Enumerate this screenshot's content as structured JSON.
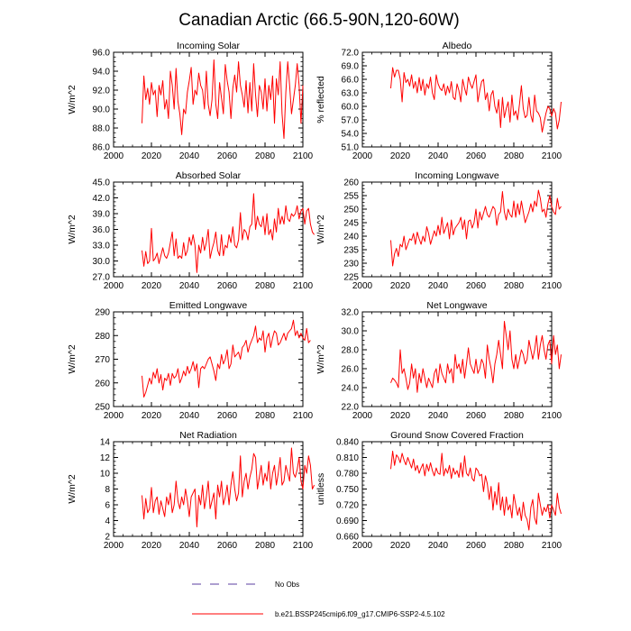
{
  "title": "Canadian Arctic (66.5-90N,120-60W)",
  "colors": {
    "model": "#ff0000",
    "obs": "#5b3fa0",
    "axis": "#000000"
  },
  "legend": {
    "obs_label": "No Obs",
    "model_label": "b.e21.BSSP245cmip6.f09_g17.CMIP6-SSP2-4.5.102"
  },
  "chart_data": [
    {
      "type": "line",
      "title": "Incoming Solar",
      "ylabel": "W/m^2",
      "xlim": [
        2000,
        2100
      ],
      "ylim": [
        86,
        96
      ],
      "xticks": [
        2000,
        2020,
        2040,
        2060,
        2080,
        2100
      ],
      "yticks": [
        86,
        88,
        90,
        92,
        94,
        96
      ],
      "ytick_labels": [
        "86.0",
        "88.0",
        "90.0",
        "92.0",
        "94.0",
        "96.0"
      ],
      "x_start": 2015,
      "series": [
        {
          "name": "model",
          "values": [
            88.5,
            93.5,
            91,
            92.2,
            90.5,
            92.8,
            91.5,
            92,
            89.2,
            92.5,
            91.5,
            93,
            90,
            91,
            89,
            94,
            92.5,
            90,
            94.3,
            90.8,
            89.5,
            87.3,
            90,
            89.5,
            91.8,
            93,
            94.4,
            90.5,
            92,
            91.5,
            93.8,
            92.5,
            92,
            90,
            94,
            90.5,
            89.3,
            91,
            95.2,
            90.5,
            89,
            92.8,
            91.2,
            89.5,
            94.7,
            93,
            91.8,
            89,
            92.2,
            93.6,
            91.8,
            95,
            92.5,
            91.5,
            90.2,
            93,
            89.6,
            92.8,
            89.8,
            94.8,
            91.5,
            89.2,
            92.5,
            91.8,
            90,
            93.2,
            89.8,
            92.5,
            91,
            93.5,
            88.5,
            93.2,
            91.5,
            95,
            89.5,
            86.9,
            91.8,
            95,
            92.5,
            89.5,
            91,
            92.5,
            94.8,
            92.5,
            88.5,
            92.5
          ]
        }
      ]
    },
    {
      "type": "line",
      "title": "Albedo",
      "ylabel": "% reflected",
      "xlim": [
        2000,
        2100
      ],
      "ylim": [
        51,
        72
      ],
      "xticks": [
        2000,
        2020,
        2040,
        2060,
        2080,
        2100
      ],
      "yticks": [
        51,
        54,
        57,
        60,
        63,
        66,
        69,
        72
      ],
      "ytick_labels": [
        "51.0",
        "54.0",
        "57.0",
        "60.0",
        "63.0",
        "66.0",
        "69.0",
        "72.0"
      ],
      "x_start": 2015,
      "series": [
        {
          "name": "model",
          "values": [
            64,
            68.6,
            66.5,
            68,
            68,
            66,
            61,
            67.5,
            65.3,
            66,
            64.5,
            67,
            64,
            65.5,
            63,
            66.4,
            63.5,
            66,
            62.5,
            65,
            64,
            66.5,
            63,
            61.5,
            67,
            65,
            64,
            63.5,
            65,
            62.5,
            64.5,
            63,
            65.5,
            62,
            61.5,
            65,
            63.5,
            61,
            66,
            64,
            62.5,
            66.5,
            65,
            64,
            65.5,
            67,
            61,
            63.5,
            65.5,
            66,
            61.5,
            63,
            59,
            62.5,
            63.5,
            60,
            58.5,
            61.5,
            55.3,
            62,
            57.5,
            59.5,
            61,
            56.5,
            62.5,
            58,
            59,
            57,
            60.5,
            64.6,
            59.5,
            57.5,
            58,
            62,
            58,
            56.5,
            62.5,
            59,
            58.5,
            57.5,
            54.3,
            56.5,
            58.5,
            60,
            59.5,
            57.8,
            59.5,
            58.5,
            55,
            57,
            61
          ]
        }
      ]
    },
    {
      "type": "line",
      "title": "Absorbed Solar",
      "ylabel": "W/m^2",
      "xlim": [
        2000,
        2100
      ],
      "ylim": [
        27,
        45
      ],
      "xticks": [
        2000,
        2020,
        2040,
        2060,
        2080,
        2100
      ],
      "yticks": [
        27,
        30,
        33,
        36,
        39,
        42,
        45
      ],
      "ytick_labels": [
        "27.0",
        "30.0",
        "33.0",
        "36.0",
        "39.0",
        "42.0",
        "45.0"
      ],
      "x_start": 2015,
      "series": [
        {
          "name": "model",
          "values": [
            32,
            29,
            31.8,
            29.5,
            30,
            36.2,
            30,
            30.5,
            31.5,
            29.5,
            31,
            32.5,
            31,
            30.5,
            31.5,
            33.5,
            35.5,
            31,
            34.2,
            30.5,
            31,
            30.5,
            33.5,
            31,
            32,
            34.5,
            33,
            35,
            33,
            27.8,
            33,
            31.5,
            34.5,
            32,
            33.5,
            36,
            30.5,
            32.2,
            33.5,
            35.5,
            32,
            31,
            35,
            31,
            33,
            32.5,
            35,
            33.5,
            36.5,
            33,
            32.5,
            34,
            39.2,
            34,
            36,
            35.5,
            34,
            36.5,
            37,
            42.8,
            36,
            38.5,
            37,
            36.5,
            38.5,
            35,
            39,
            35,
            36,
            34,
            38,
            35.5,
            40,
            37,
            38.5,
            37,
            40.5,
            38,
            37.5,
            39,
            38.5,
            39,
            40.5,
            38,
            39.5,
            40,
            37,
            39.5,
            40,
            37,
            35.5,
            35
          ]
        }
      ]
    },
    {
      "type": "line",
      "title": "Incoming Longwave",
      "ylabel": "W/m^2",
      "xlim": [
        2000,
        2100
      ],
      "ylim": [
        225,
        260
      ],
      "xticks": [
        2000,
        2020,
        2040,
        2060,
        2080,
        2100
      ],
      "yticks": [
        225,
        230,
        235,
        240,
        245,
        250,
        255,
        260
      ],
      "ytick_labels": [
        "225",
        "230",
        "235",
        "240",
        "245",
        "250",
        "255",
        "260"
      ],
      "x_start": 2015,
      "series": [
        {
          "name": "model",
          "values": [
            238.5,
            229,
            233.5,
            235.5,
            232.5,
            237,
            236,
            240,
            235,
            237,
            239,
            238.5,
            241,
            237,
            241.5,
            239,
            237,
            240,
            238,
            243.5,
            241,
            237,
            239.5,
            242,
            240,
            244,
            240.5,
            247,
            241,
            243,
            245,
            239,
            246,
            240.5,
            243,
            244,
            245,
            247,
            242.5,
            246,
            239,
            245.5,
            246,
            243,
            245,
            250,
            243,
            249,
            246,
            248.5,
            251,
            248,
            247,
            249,
            251,
            250,
            244,
            248,
            249,
            256.5,
            249,
            246,
            250,
            248,
            247,
            253,
            247,
            252,
            248,
            253,
            249,
            245,
            247,
            249,
            252,
            249,
            253,
            251,
            257,
            254,
            249,
            250,
            247,
            252,
            255,
            251,
            249,
            248,
            254,
            250,
            251
          ]
        }
      ]
    },
    {
      "type": "line",
      "title": "Emitted Longwave",
      "ylabel": "W/m^2",
      "xlim": [
        2000,
        2100
      ],
      "ylim": [
        250,
        290
      ],
      "xticks": [
        2000,
        2020,
        2040,
        2060,
        2080,
        2100
      ],
      "yticks": [
        250,
        260,
        270,
        280,
        290
      ],
      "ytick_labels": [
        "250",
        "260",
        "270",
        "280",
        "290"
      ],
      "x_start": 2015,
      "series": [
        {
          "name": "model",
          "values": [
            263,
            254,
            256,
            259,
            262,
            259.5,
            264.5,
            262,
            266,
            260,
            263.5,
            257,
            262,
            261,
            264,
            259,
            264,
            262,
            263,
            266,
            260,
            262,
            265,
            263,
            267,
            264,
            266,
            269,
            265,
            268,
            258,
            266,
            267,
            266,
            268,
            270,
            271,
            268,
            265,
            261,
            268,
            266,
            272,
            268,
            270,
            274,
            266,
            268,
            276,
            271,
            272,
            273,
            270,
            275,
            276,
            278,
            273,
            276,
            278,
            280,
            284,
            277,
            279,
            278,
            282,
            273,
            279,
            281,
            275,
            279,
            282,
            281,
            276,
            277,
            279,
            281,
            278,
            281,
            282,
            283,
            286.5,
            280,
            282,
            279,
            281,
            279,
            278,
            283,
            277,
            278
          ]
        }
      ]
    },
    {
      "type": "line",
      "title": "Net Longwave",
      "ylabel": "W/m^2",
      "xlim": [
        2000,
        2100
      ],
      "ylim": [
        22,
        32
      ],
      "xticks": [
        2000,
        2020,
        2040,
        2060,
        2080,
        2100
      ],
      "yticks": [
        22,
        24,
        26,
        28,
        30,
        32
      ],
      "ytick_labels": [
        "22.0",
        "24.0",
        "26.0",
        "28.0",
        "30.0",
        "32.0"
      ],
      "x_start": 2015,
      "series": [
        {
          "name": "model",
          "values": [
            24.5,
            25,
            24.8,
            24.5,
            24,
            28,
            25.5,
            26,
            25,
            23.8,
            24.5,
            26.5,
            25,
            26,
            23.5,
            25.5,
            24.5,
            26,
            25,
            24,
            25,
            24.5,
            24,
            25.5,
            26,
            24.5,
            26.5,
            25.5,
            25,
            24.5,
            26.5,
            25.5,
            26,
            24.5,
            27.5,
            26,
            26.5,
            25.5,
            27,
            25,
            26.5,
            28.2,
            26.5,
            26,
            25.5,
            27,
            25.5,
            26,
            27,
            26.5,
            25,
            28.5,
            27,
            26,
            24.5,
            26.5,
            27.5,
            29,
            27.5,
            26,
            31,
            29.5,
            28,
            30,
            27,
            26,
            27.5,
            26,
            27,
            28,
            27.5,
            26.5,
            27,
            29,
            28,
            27,
            28,
            29.5,
            27,
            28.5,
            29.5,
            28,
            27,
            28.5,
            29,
            26.5,
            29.5,
            27.5,
            28.5,
            26,
            27.5
          ]
        }
      ]
    },
    {
      "type": "line",
      "title": "Net Radiation",
      "ylabel": "W/m^2",
      "xlim": [
        2000,
        2100
      ],
      "ylim": [
        2,
        14
      ],
      "xticks": [
        2000,
        2020,
        2040,
        2060,
        2080,
        2100
      ],
      "yticks": [
        2,
        4,
        6,
        8,
        10,
        12,
        14
      ],
      "ytick_labels": [
        "2",
        "4",
        "6",
        "8",
        "10",
        "12",
        "14"
      ],
      "x_start": 2015,
      "series": [
        {
          "name": "model",
          "values": [
            7.2,
            4.2,
            6.8,
            5,
            5.5,
            8.2,
            5,
            6.5,
            7,
            4.8,
            6.5,
            5.5,
            4.5,
            7,
            6,
            7.5,
            5,
            6,
            9,
            6.5,
            5.5,
            7,
            6,
            8,
            6.5,
            4.5,
            7,
            7.5,
            8,
            3.2,
            7.2,
            6,
            8.5,
            5.5,
            7,
            9,
            5.5,
            6.5,
            7.5,
            4.2,
            8.5,
            7,
            9,
            6,
            7,
            8.5,
            6,
            8.5,
            10.2,
            8,
            6.5,
            7.5,
            12.2,
            7,
            9,
            10,
            8,
            9.5,
            10.5,
            12.5,
            12,
            8,
            9.5,
            11,
            8.5,
            10,
            9,
            11.5,
            8,
            10,
            11,
            8.5,
            10,
            12,
            8.5,
            9,
            11,
            10,
            9,
            13.2,
            10,
            9.5,
            10.5,
            12,
            9,
            8,
            11,
            10,
            12.2,
            11,
            8,
            8.5
          ]
        }
      ]
    },
    {
      "type": "line",
      "title": "Ground Snow Covered Fraction",
      "ylabel": "unitless",
      "xlim": [
        2000,
        2100
      ],
      "ylim": [
        0.66,
        0.84
      ],
      "xticks": [
        2000,
        2020,
        2040,
        2060,
        2080,
        2100
      ],
      "yticks": [
        0.66,
        0.69,
        0.72,
        0.75,
        0.78,
        0.81,
        0.84
      ],
      "ytick_labels": [
        "0.660",
        "0.690",
        "0.720",
        "0.750",
        "0.780",
        "0.810",
        "0.840"
      ],
      "x_start": 2015,
      "series": [
        {
          "name": "model",
          "values": [
            0.788,
            0.822,
            0.795,
            0.815,
            0.81,
            0.8,
            0.818,
            0.805,
            0.796,
            0.81,
            0.8,
            0.79,
            0.807,
            0.785,
            0.795,
            0.78,
            0.79,
            0.798,
            0.775,
            0.797,
            0.784,
            0.8,
            0.785,
            0.775,
            0.79,
            0.78,
            0.778,
            0.818,
            0.775,
            0.789,
            0.78,
            0.795,
            0.77,
            0.79,
            0.778,
            0.785,
            0.772,
            0.8,
            0.773,
            0.813,
            0.78,
            0.775,
            0.79,
            0.77,
            0.765,
            0.79,
            0.785,
            0.775,
            0.778,
            0.745,
            0.775,
            0.76,
            0.73,
            0.755,
            0.71,
            0.745,
            0.72,
            0.762,
            0.71,
            0.735,
            0.7,
            0.735,
            0.71,
            0.72,
            0.695,
            0.74,
            0.72,
            0.7,
            0.715,
            0.69,
            0.725,
            0.7,
            0.692,
            0.672,
            0.715,
            0.73,
            0.695,
            0.683,
            0.742,
            0.72,
            0.7,
            0.715,
            0.707,
            0.72,
            0.695,
            0.72,
            0.71,
            0.7,
            0.742,
            0.715,
            0.703
          ]
        }
      ]
    }
  ]
}
